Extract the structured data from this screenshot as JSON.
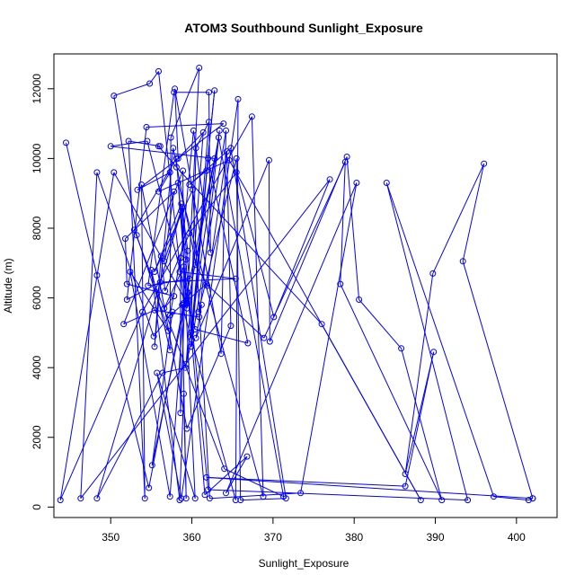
{
  "chart_data": {
    "type": "line",
    "title": "ATOM3 Southbound Sunlight_Exposure",
    "xlabel": "Sunlight_Exposure",
    "ylabel": "Altitude (m)",
    "xlim": [
      343,
      405
    ],
    "ylim": [
      -300,
      13000
    ],
    "x_ticks": [
      "350",
      "360",
      "370",
      "380",
      "390",
      "400"
    ],
    "y_ticks": [
      "0",
      "2000",
      "4000",
      "6000",
      "8000",
      "10000",
      "12000"
    ],
    "grid": false,
    "legend": "none",
    "series": [
      {
        "color": "#0000ff",
        "marker": "open-circle",
        "points": [
          [
            344.5,
            10450
          ],
          [
            348.3,
            6650
          ],
          [
            354.7,
            550
          ],
          [
            359.0,
            5850
          ],
          [
            355.9,
            12500
          ],
          [
            354.8,
            12150
          ],
          [
            350.4,
            11800
          ],
          [
            353.2,
            7800
          ],
          [
            357.1,
            5050
          ],
          [
            352.4,
            6750
          ],
          [
            357.3,
            300
          ],
          [
            359.0,
            5800
          ],
          [
            358.9,
            9650
          ],
          [
            351.6,
            5250
          ],
          [
            355.4,
            5650
          ],
          [
            360.9,
            5450
          ],
          [
            363.4,
            10800
          ],
          [
            359.3,
            4100
          ],
          [
            361.4,
            10750
          ],
          [
            358.3,
            10000
          ],
          [
            357.9,
            12000
          ],
          [
            363.6,
            4400
          ],
          [
            364.2,
            10800
          ],
          [
            359.9,
            4600
          ],
          [
            362.1,
            11050
          ],
          [
            360.5,
            10300
          ],
          [
            359.9,
            5000
          ],
          [
            362.8,
            11950
          ],
          [
            361.8,
            9650
          ],
          [
            359.7,
            9250
          ],
          [
            364.8,
            10300
          ],
          [
            371.6,
            250
          ],
          [
            366.0,
            200
          ],
          [
            365.5,
            10000
          ],
          [
            360.8,
            5600
          ],
          [
            361.2,
            5800
          ],
          [
            360.5,
            4850
          ],
          [
            369.5,
            9950
          ],
          [
            369.6,
            4750
          ],
          [
            379.1,
            10050
          ],
          [
            380.6,
            5950
          ],
          [
            385.8,
            4550
          ],
          [
            390.8,
            200
          ],
          [
            378.3,
            6400
          ],
          [
            378.9,
            9900
          ],
          [
            368.9,
            4850
          ],
          [
            361.8,
            6400
          ],
          [
            357.3,
            5500
          ],
          [
            358.6,
            7150
          ],
          [
            358.6,
            2700
          ],
          [
            359.3,
            7100
          ],
          [
            359.5,
            7350
          ],
          [
            358.8,
            8600
          ],
          [
            356.6,
            7050
          ],
          [
            357.8,
            9050
          ],
          [
            351.8,
            7700
          ],
          [
            352.0,
            6400
          ],
          [
            357.8,
            6050
          ],
          [
            356.6,
            5700
          ],
          [
            359.0,
            6900
          ],
          [
            359.5,
            6150
          ],
          [
            361.6,
            350
          ],
          [
            366.8,
            1450
          ],
          [
            364.2,
            400
          ],
          [
            380.3,
            9300
          ],
          [
            373.4,
            400
          ],
          [
            362.2,
            250
          ],
          [
            360.1,
            9100
          ],
          [
            355.4,
            6750
          ],
          [
            358.7,
            8700
          ],
          [
            359.7,
            6550
          ],
          [
            354.6,
            6350
          ],
          [
            357.8,
            11900
          ],
          [
            362.1,
            11900
          ],
          [
            362.3,
            7300
          ],
          [
            360.2,
            10800
          ],
          [
            358.5,
            6750
          ],
          [
            365.4,
            6550
          ],
          [
            356.1,
            6450
          ],
          [
            352.0,
            5950
          ],
          [
            354.4,
            10900
          ],
          [
            363.9,
            11000
          ],
          [
            353.3,
            9100
          ],
          [
            357.3,
            9600
          ],
          [
            355.9,
            9050
          ],
          [
            364.6,
            9950
          ],
          [
            388.2,
            200
          ],
          [
            376.0,
            5250
          ],
          [
            358.1,
            9750
          ],
          [
            355.9,
            10350
          ],
          [
            356.1,
            10350
          ],
          [
            352.2,
            10500
          ],
          [
            354.2,
            250
          ],
          [
            353.8,
            9250
          ],
          [
            359.4,
            2250
          ],
          [
            364.8,
            5200
          ],
          [
            364.3,
            10200
          ],
          [
            361.9,
            6350
          ],
          [
            360.5,
            6950
          ],
          [
            357.7,
            10300
          ],
          [
            355.4,
            4600
          ],
          [
            356.2,
            7200
          ],
          [
            356.7,
            6200
          ],
          [
            359.7,
            7850
          ],
          [
            365.5,
            9600
          ],
          [
            370.1,
            5450
          ],
          [
            377.0,
            9400
          ],
          [
            346.3,
            250
          ],
          [
            348.3,
            9600
          ],
          [
            355.3,
            4900
          ],
          [
            357.6,
            5600
          ],
          [
            355.1,
            1200
          ],
          [
            362.8,
            10000
          ],
          [
            350.0,
            10350
          ],
          [
            354.5,
            10500
          ],
          [
            360.4,
            5100
          ],
          [
            366.9,
            4700
          ],
          [
            362.0,
            10000
          ],
          [
            360.0,
            4800
          ],
          [
            359.2,
            4000
          ],
          [
            356.4,
            3850
          ],
          [
            348.3,
            250
          ],
          [
            358.7,
            8500
          ],
          [
            360.4,
            250
          ],
          [
            355.7,
            3850
          ],
          [
            358.7,
            250
          ],
          [
            365.7,
            11700
          ],
          [
            365.4,
            200
          ],
          [
            358.8,
            5800
          ],
          [
            359.3,
            250
          ],
          [
            359.0,
            3250
          ],
          [
            358.5,
            200
          ],
          [
            355.0,
            6800
          ],
          [
            357.3,
            4500
          ],
          [
            357.4,
            10600
          ],
          [
            360.9,
            12600
          ],
          [
            359.4,
            5700
          ],
          [
            363.3,
            10600
          ],
          [
            371.3,
            300
          ],
          [
            364.0,
            1100
          ],
          [
            352.9,
            7950
          ],
          [
            358.1,
            10000
          ],
          [
            359.4,
            5850
          ],
          [
            350.4,
            9600
          ],
          [
            343.8,
            200
          ],
          [
            353.9,
            5600
          ],
          [
            367.4,
            11200
          ],
          [
            368.8,
            300
          ],
          [
            358.3,
            9300
          ],
          [
            362.0,
            500
          ],
          [
            394.0,
            200
          ],
          [
            384.0,
            9300
          ],
          [
            397.2,
            300
          ],
          [
            401.5,
            200
          ],
          [
            402.0,
            250
          ],
          [
            393.4,
            7050
          ],
          [
            396.0,
            9850
          ],
          [
            389.7,
            6700
          ],
          [
            386.3,
            950
          ],
          [
            389.8,
            4450
          ],
          [
            386.3,
            600
          ],
          [
            361.8,
            850
          ],
          [
            402.0,
            250
          ]
        ]
      }
    ]
  }
}
